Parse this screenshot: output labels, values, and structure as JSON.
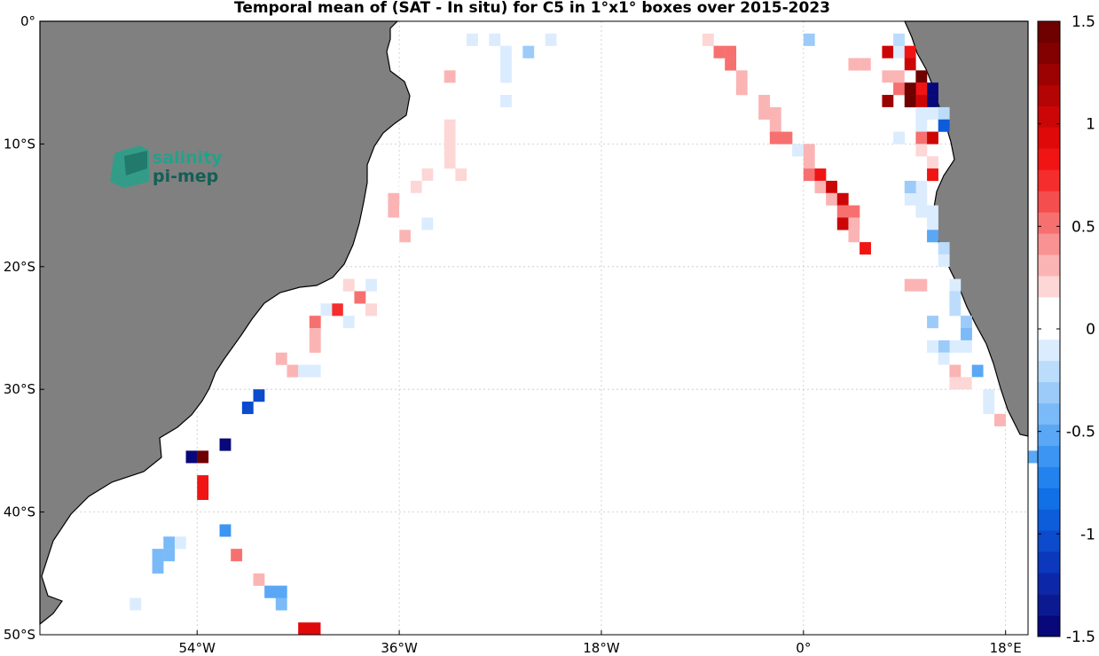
{
  "title": "Temporal mean of (SAT - In situ) for C5 in 1°x1° boxes over 2015-2023",
  "logo": {
    "line1": "salinity",
    "line2": "pi-mep",
    "color1": "#1fa38a",
    "color2": "#135f55"
  },
  "colors": {
    "land": "#808080",
    "coast": "#000000",
    "grid": "#c8c8c8"
  },
  "map_data": {
    "extent": {
      "lon_min": -68,
      "lon_max": 20,
      "lat_min": -50,
      "lat_max": 0
    },
    "x_ticks": [
      {
        "value": -54,
        "label": "54°W"
      },
      {
        "value": -36,
        "label": "36°W"
      },
      {
        "value": -18,
        "label": "18°W"
      },
      {
        "value": 0,
        "label": "0°"
      },
      {
        "value": 18,
        "label": "18°E"
      }
    ],
    "y_ticks": [
      {
        "value": 0,
        "label": "0°"
      },
      {
        "value": -10,
        "label": "10°S"
      },
      {
        "value": -20,
        "label": "20°S"
      },
      {
        "value": -30,
        "label": "30°S"
      },
      {
        "value": -40,
        "label": "40°S"
      },
      {
        "value": -50,
        "label": "50°S"
      }
    ],
    "colorbar": {
      "min": -1.5,
      "max": 1.5,
      "ticks": [
        {
          "value": 1.5,
          "label": "1.5"
        },
        {
          "value": 1,
          "label": "1"
        },
        {
          "value": 0.5,
          "label": "0.5"
        },
        {
          "value": 0,
          "label": "0"
        },
        {
          "value": -0.5,
          "label": "-0.5"
        },
        {
          "value": -1,
          "label": "-1"
        },
        {
          "value": -1.5,
          "label": "-1.5"
        }
      ],
      "colors": [
        "#08087a",
        "#0c1a92",
        "#0c28a8",
        "#0b38bc",
        "#0b4bcc",
        "#0d5ddb",
        "#1170e6",
        "#2383ee",
        "#3c95f2",
        "#5aa7f5",
        "#7bbaf8",
        "#9ccbfa",
        "#bcdcfc",
        "#dbecfe",
        "#ffffff",
        "#ffffff",
        "#fdd6d6",
        "#fbb4b4",
        "#f99292",
        "#f77070",
        "#f54e4e",
        "#f52d2d",
        "#f01414",
        "#e00909",
        "#cc0606",
        "#b40404",
        "#9c0202",
        "#840101",
        "#6e0000"
      ]
    },
    "cells": [
      {
        "lon": -30,
        "lat": -1,
        "v": -0.15
      },
      {
        "lon": -28,
        "lat": -1,
        "v": -0.1
      },
      {
        "lon": -27,
        "lat": -2,
        "v": -0.1
      },
      {
        "lon": -27,
        "lat": -3,
        "v": -0.15
      },
      {
        "lon": -27,
        "lat": -4,
        "v": -0.1
      },
      {
        "lon": -25,
        "lat": -2,
        "v": -0.35
      },
      {
        "lon": -23,
        "lat": -1,
        "v": -0.15
      },
      {
        "lon": -32,
        "lat": -4,
        "v": 0.3
      },
      {
        "lon": -27,
        "lat": -6,
        "v": -0.1
      },
      {
        "lon": -32,
        "lat": -8,
        "v": 0.2
      },
      {
        "lon": -32,
        "lat": -9,
        "v": 0.2
      },
      {
        "lon": -32,
        "lat": -10,
        "v": 0.2
      },
      {
        "lon": -32,
        "lat": -11,
        "v": 0.2
      },
      {
        "lon": -33,
        "lat": -11,
        "v": 0.15
      },
      {
        "lon": -34,
        "lat": -11,
        "v": 0.15
      },
      {
        "lon": -33,
        "lat": -12,
        "v": 0.15
      },
      {
        "lon": -34,
        "lat": -12,
        "v": 0.2
      },
      {
        "lon": -35,
        "lat": -12,
        "v": 0.15
      },
      {
        "lon": -31,
        "lat": -12,
        "v": 0.2
      },
      {
        "lon": -34,
        "lat": -13,
        "v": 0.15
      },
      {
        "lon": -35,
        "lat": -13,
        "v": 0.25
      },
      {
        "lon": -36,
        "lat": -13,
        "v": 0.15
      },
      {
        "lon": -34,
        "lat": -14,
        "v": 0.15
      },
      {
        "lon": -35,
        "lat": -14,
        "v": 0.15
      },
      {
        "lon": -36,
        "lat": -14,
        "v": 0.15
      },
      {
        "lon": -37,
        "lat": -14,
        "v": 0.3
      },
      {
        "lon": -37,
        "lat": -15,
        "v": 0.3
      },
      {
        "lon": -36,
        "lat": -15,
        "v": 0.15
      },
      {
        "lon": -37,
        "lat": -16,
        "v": 0.15
      },
      {
        "lon": -38,
        "lat": -16,
        "v": 0.15
      },
      {
        "lon": -36,
        "lat": -17,
        "v": 0.3
      },
      {
        "lon": -37,
        "lat": -17,
        "v": 0.15
      },
      {
        "lon": -38,
        "lat": -17,
        "v": 0.15
      },
      {
        "lon": -37,
        "lat": -18,
        "v": 0.15
      },
      {
        "lon": -38,
        "lat": -18,
        "v": 0.15
      },
      {
        "lon": -34,
        "lat": -16,
        "v": -0.15
      },
      {
        "lon": -39,
        "lat": -21,
        "v": -0.1
      },
      {
        "lon": -40,
        "lat": -22,
        "v": 0.5
      },
      {
        "lon": -41,
        "lat": -21,
        "v": 0.2
      },
      {
        "lon": -39,
        "lat": -23,
        "v": 0.2
      },
      {
        "lon": -42,
        "lat": -23,
        "v": 0.7
      },
      {
        "lon": -43,
        "lat": -23,
        "v": -0.15
      },
      {
        "lon": -41,
        "lat": -23,
        "v": 0.15
      },
      {
        "lon": -41,
        "lat": -24,
        "v": -0.15
      },
      {
        "lon": -44,
        "lat": -24,
        "v": 0.5
      },
      {
        "lon": -44,
        "lat": -25,
        "v": 0.3
      },
      {
        "lon": -44,
        "lat": -26,
        "v": 0.3
      },
      {
        "lon": -42,
        "lat": -25,
        "v": 0.15
      },
      {
        "lon": -42,
        "lat": -26,
        "v": 0.15
      },
      {
        "lon": -47,
        "lat": -27,
        "v": 0.3
      },
      {
        "lon": -46,
        "lat": -28,
        "v": 0.3
      },
      {
        "lon": -45,
        "lat": -28,
        "v": -0.15
      },
      {
        "lon": -44,
        "lat": -28,
        "v": -0.15
      },
      {
        "lon": -49,
        "lat": -30,
        "v": -1.0
      },
      {
        "lon": -50,
        "lat": -31,
        "v": -1.0
      },
      {
        "lon": -52,
        "lat": -34,
        "v": -1.5
      },
      {
        "lon": -55,
        "lat": -35,
        "v": -1.5
      },
      {
        "lon": -54,
        "lat": -35,
        "v": 1.5
      },
      {
        "lon": -54,
        "lat": -37,
        "v": 0.8
      },
      {
        "lon": -54,
        "lat": -38,
        "v": 0.8
      },
      {
        "lon": -52,
        "lat": -41,
        "v": -0.6
      },
      {
        "lon": -57,
        "lat": -42,
        "v": -0.4
      },
      {
        "lon": -56,
        "lat": -42,
        "v": -0.15
      },
      {
        "lon": -57,
        "lat": -43,
        "v": -0.4
      },
      {
        "lon": -58,
        "lat": -43,
        "v": -0.4
      },
      {
        "lon": -58,
        "lat": -44,
        "v": -0.4
      },
      {
        "lon": -51,
        "lat": -43,
        "v": 0.5
      },
      {
        "lon": -49,
        "lat": -45,
        "v": 0.3
      },
      {
        "lon": -48,
        "lat": -46,
        "v": -0.5
      },
      {
        "lon": -47,
        "lat": -46,
        "v": -0.5
      },
      {
        "lon": -47,
        "lat": -47,
        "v": -0.4
      },
      {
        "lon": -60,
        "lat": -47,
        "v": -0.15
      },
      {
        "lon": -45,
        "lat": -49,
        "v": 0.9
      },
      {
        "lon": -44,
        "lat": -49,
        "v": 0.9
      },
      {
        "lon": -43,
        "lat": -49,
        "v": 0.15
      },
      {
        "lon": -9,
        "lat": -1,
        "v": 0.2
      },
      {
        "lon": -8,
        "lat": -2,
        "v": 0.5
      },
      {
        "lon": -7,
        "lat": -2,
        "v": 0.5
      },
      {
        "lon": -7,
        "lat": -3,
        "v": 0.5
      },
      {
        "lon": -6,
        "lat": -4,
        "v": 0.3
      },
      {
        "lon": -6,
        "lat": -5,
        "v": 0.3
      },
      {
        "lon": -4,
        "lat": -6,
        "v": 0.3
      },
      {
        "lon": -4,
        "lat": -7,
        "v": 0.3
      },
      {
        "lon": -3,
        "lat": -7,
        "v": 0.3
      },
      {
        "lon": -3,
        "lat": -8,
        "v": 0.3
      },
      {
        "lon": -3,
        "lat": -9,
        "v": 0.5
      },
      {
        "lon": -2,
        "lat": -9,
        "v": 0.5
      },
      {
        "lon": -1,
        "lat": -10,
        "v": -0.15
      },
      {
        "lon": 0,
        "lat": -10,
        "v": 0.3
      },
      {
        "lon": 0,
        "lat": -11,
        "v": 0.3
      },
      {
        "lon": 0,
        "lat": -12,
        "v": 0.5
      },
      {
        "lon": 1,
        "lat": -12,
        "v": 0.8
      },
      {
        "lon": 1,
        "lat": -13,
        "v": 0.3
      },
      {
        "lon": 2,
        "lat": -13,
        "v": 1.0
      },
      {
        "lon": 2,
        "lat": -14,
        "v": 0.3
      },
      {
        "lon": 3,
        "lat": -14,
        "v": 1.0
      },
      {
        "lon": 3,
        "lat": -15,
        "v": 0.5
      },
      {
        "lon": 4,
        "lat": -15,
        "v": 0.5
      },
      {
        "lon": 3,
        "lat": -16,
        "v": 1.0
      },
      {
        "lon": 4,
        "lat": -16,
        "v": 0.3
      },
      {
        "lon": 4,
        "lat": -17,
        "v": 0.3
      },
      {
        "lon": 5,
        "lat": -17,
        "v": 0.15
      },
      {
        "lon": 5,
        "lat": -18,
        "v": 0.8
      },
      {
        "lon": 0,
        "lat": -1,
        "v": -0.3
      },
      {
        "lon": 3,
        "lat": -1,
        "v": 0.15
      },
      {
        "lon": 4,
        "lat": -2,
        "v": 0.15
      },
      {
        "lon": 4,
        "lat": -3,
        "v": 0.3
      },
      {
        "lon": 5,
        "lat": -3,
        "v": 0.3
      },
      {
        "lon": 6,
        "lat": -1,
        "v": 0.15
      },
      {
        "lon": 6,
        "lat": -2,
        "v": 0.15
      },
      {
        "lon": 6,
        "lat": -3,
        "v": 0.15
      },
      {
        "lon": 6,
        "lat": -4,
        "v": 0.15
      },
      {
        "lon": 7,
        "lat": -2,
        "v": 1.0
      },
      {
        "lon": 7,
        "lat": -4,
        "v": 0.3
      },
      {
        "lon": 7,
        "lat": -5,
        "v": 0.15
      },
      {
        "lon": 8,
        "lat": -4,
        "v": 0.3
      },
      {
        "lon": 8,
        "lat": -5,
        "v": 0.5
      },
      {
        "lon": 7,
        "lat": -6,
        "v": 1.2
      },
      {
        "lon": 7,
        "lat": -7,
        "v": 0.15
      },
      {
        "lon": 8,
        "lat": -2,
        "v": -0.15
      },
      {
        "lon": 9,
        "lat": -2,
        "v": 0.8
      },
      {
        "lon": 9,
        "lat": -3,
        "v": 1.0
      },
      {
        "lon": 9,
        "lat": -4,
        "v": 0.15
      },
      {
        "lon": 10,
        "lat": -4,
        "v": 1.5
      },
      {
        "lon": 10,
        "lat": -5,
        "v": 0.8
      },
      {
        "lon": 9,
        "lat": -5,
        "v": 1.5
      },
      {
        "lon": 9,
        "lat": -6,
        "v": 1.5
      },
      {
        "lon": 10,
        "lat": -6,
        "v": 1.0
      },
      {
        "lon": 10,
        "lat": -7,
        "v": -0.15
      },
      {
        "lon": 11,
        "lat": -5,
        "v": -1.5
      },
      {
        "lon": 11,
        "lat": -6,
        "v": -1.5
      },
      {
        "lon": 11,
        "lat": -7,
        "v": -0.15
      },
      {
        "lon": 12,
        "lat": -7,
        "v": -0.2
      },
      {
        "lon": 10,
        "lat": -8,
        "v": -0.15
      },
      {
        "lon": 10,
        "lat": -9,
        "v": 0.5
      },
      {
        "lon": 10,
        "lat": -10,
        "v": 0.2
      },
      {
        "lon": 11,
        "lat": -9,
        "v": 1.0
      },
      {
        "lon": 11,
        "lat": -11,
        "v": 0.2
      },
      {
        "lon": 11,
        "lat": -12,
        "v": 0.8
      },
      {
        "lon": 10,
        "lat": -13,
        "v": -0.1
      },
      {
        "lon": 10,
        "lat": -14,
        "v": -0.1
      },
      {
        "lon": 10,
        "lat": -15,
        "v": -0.15
      },
      {
        "lon": 11,
        "lat": -15,
        "v": -0.1
      },
      {
        "lon": 11,
        "lat": -16,
        "v": -0.15
      },
      {
        "lon": 11,
        "lat": -17,
        "v": -0.5
      },
      {
        "lon": 12,
        "lat": -18,
        "v": -0.2
      },
      {
        "lon": 12,
        "lat": -19,
        "v": -0.15
      },
      {
        "lon": 13,
        "lat": -21,
        "v": -0.15
      },
      {
        "lon": 13,
        "lat": -22,
        "v": -0.2
      },
      {
        "lon": 13,
        "lat": -23,
        "v": -0.2
      },
      {
        "lon": 14,
        "lat": -24,
        "v": -0.3
      },
      {
        "lon": 14,
        "lat": -25,
        "v": -0.45
      },
      {
        "lon": 14,
        "lat": -26,
        "v": -0.15
      },
      {
        "lon": 13,
        "lat": -26,
        "v": -0.15
      },
      {
        "lon": 12,
        "lat": -26,
        "v": -0.3
      },
      {
        "lon": 11,
        "lat": -24,
        "v": -0.3
      },
      {
        "lon": 11,
        "lat": -26,
        "v": -0.1
      },
      {
        "lon": 12,
        "lat": -27,
        "v": -0.15
      },
      {
        "lon": 12,
        "lat": -28,
        "v": 0.15
      },
      {
        "lon": 13,
        "lat": -28,
        "v": 0.3
      },
      {
        "lon": 13,
        "lat": -29,
        "v": 0.2
      },
      {
        "lon": 14,
        "lat": -29,
        "v": 0.2
      },
      {
        "lon": 15,
        "lat": -28,
        "v": -0.5
      },
      {
        "lon": 15,
        "lat": -29,
        "v": 0.15
      },
      {
        "lon": 16,
        "lat": -30,
        "v": -0.15
      },
      {
        "lon": 16,
        "lat": -31,
        "v": -0.1
      },
      {
        "lon": 17,
        "lat": -32,
        "v": 0.3
      },
      {
        "lon": 9,
        "lat": -21,
        "v": 0.3
      },
      {
        "lon": 10,
        "lat": -21,
        "v": 0.3
      },
      {
        "lon": 8,
        "lat": -8,
        "v": 0.15
      },
      {
        "lon": 8,
        "lat": -9,
        "v": -0.15
      },
      {
        "lon": 12,
        "lat": -8,
        "v": -0.9
      },
      {
        "lon": 8,
        "lat": -1,
        "v": -0.2
      },
      {
        "lon": 20,
        "lat": -35,
        "v": -0.5
      },
      {
        "lon": 9,
        "lat": -14,
        "v": -0.15
      },
      {
        "lon": 9,
        "lat": -13,
        "v": -0.3
      }
    ]
  }
}
